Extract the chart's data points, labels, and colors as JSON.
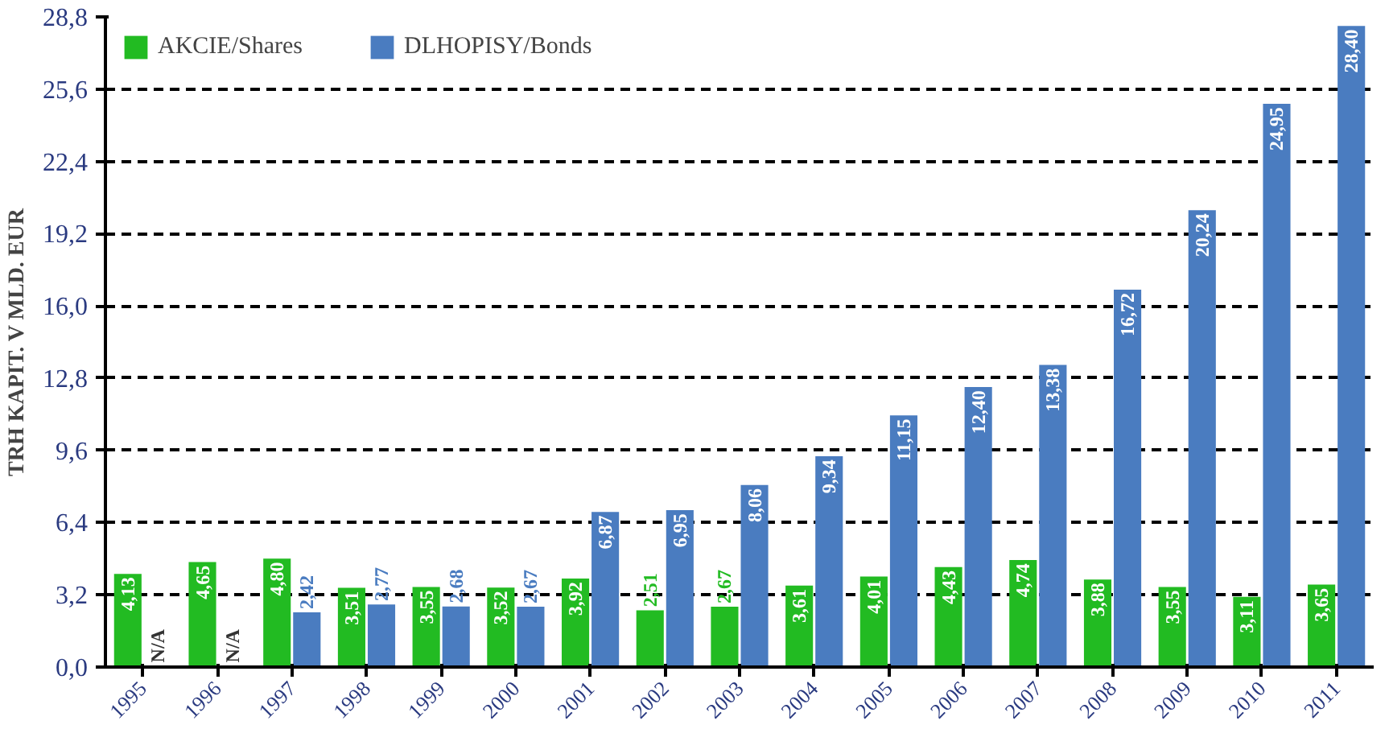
{
  "chart_data": {
    "type": "bar",
    "ylabel": "TRH KAPIT. V MLD. EUR",
    "categories": [
      "1995",
      "1996",
      "1997",
      "1998",
      "1999",
      "2000",
      "2001",
      "2002",
      "2003",
      "2004",
      "2005",
      "2006",
      "2007",
      "2008",
      "2009",
      "2010",
      "2011"
    ],
    "series": [
      {
        "name": "AKCIE/Shares",
        "color": "#22bb22",
        "values": [
          4.13,
          4.65,
          4.8,
          3.51,
          3.55,
          3.52,
          3.92,
          2.51,
          2.67,
          3.61,
          4.01,
          4.43,
          4.74,
          3.88,
          3.55,
          3.11,
          3.65
        ],
        "value_labels": [
          "4,13",
          "4,65",
          "4,80",
          "3,51",
          "3,55",
          "3,52",
          "3,92",
          "2,51",
          "2,67",
          "3,61",
          "4,01",
          "4,43",
          "4,74",
          "3,88",
          "3,55",
          "3,11",
          "3,65"
        ]
      },
      {
        "name": "DLHOPISY/Bonds",
        "color": "#4a7cc0",
        "values": [
          null,
          null,
          2.42,
          2.77,
          2.68,
          2.67,
          6.87,
          6.95,
          8.06,
          9.34,
          11.15,
          12.4,
          13.38,
          16.72,
          20.24,
          24.95,
          28.4
        ],
        "value_labels": [
          "N/A",
          "N/A",
          "2,42",
          "2,77",
          "2,68",
          "2,67",
          "6,87",
          "6,95",
          "8,06",
          "9,34",
          "11,15",
          "12,40",
          "13,38",
          "16,72",
          "20,24",
          "24,95",
          "28,40"
        ]
      }
    ],
    "ylim": [
      0,
      28.8
    ],
    "yticks": [
      {
        "value": 0,
        "label": "0,0"
      },
      {
        "value": 3.2,
        "label": "3,2"
      },
      {
        "value": 6.4,
        "label": "6,4"
      },
      {
        "value": 9.6,
        "label": "9,6"
      },
      {
        "value": 12.8,
        "label": "12,8"
      },
      {
        "value": 16.0,
        "label": "16,0"
      },
      {
        "value": 19.2,
        "label": "19,2"
      },
      {
        "value": 22.4,
        "label": "22,4"
      },
      {
        "value": 25.6,
        "label": "25,6"
      },
      {
        "value": 28.8,
        "label": "28,8"
      }
    ],
    "grid": "y",
    "legend": "top left"
  }
}
